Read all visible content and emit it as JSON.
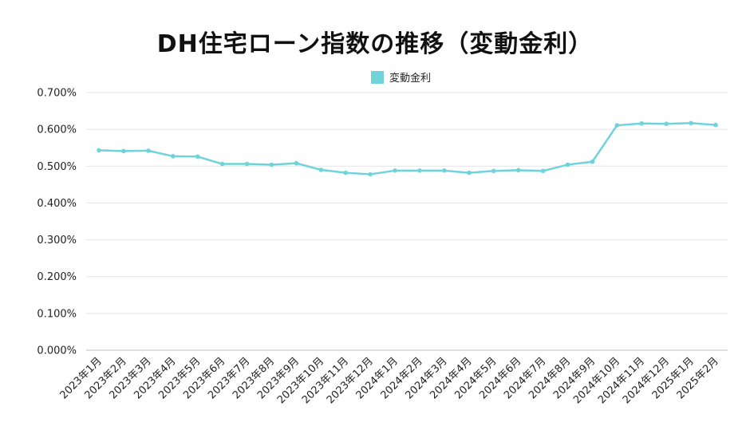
{
  "chart_data": {
    "type": "line",
    "title": "DH住宅ローン指数の推移（変動金利）",
    "xlabel": "",
    "ylabel": "",
    "categories": [
      "2023年1月",
      "2023年2月",
      "2023年3月",
      "2023年4月",
      "2023年5月",
      "2023年6月",
      "2023年7月",
      "2023年8月",
      "2023年9月",
      "2023年10月",
      "2023年11月",
      "2023年12月",
      "2024年1月",
      "2024年2月",
      "2024年3月",
      "2024年4月",
      "2024年5月",
      "2024年6月",
      "2024年7月",
      "2024年8月",
      "2024年9月",
      "2024年10月",
      "2024年11月",
      "2024年12月",
      "2025年1月",
      "2025年2月"
    ],
    "series": [
      {
        "name": "変動金利",
        "values": [
          0.543,
          0.541,
          0.542,
          0.527,
          0.526,
          0.506,
          0.506,
          0.504,
          0.508,
          0.49,
          0.482,
          0.478,
          0.488,
          0.488,
          0.488,
          0.482,
          0.487,
          0.489,
          0.487,
          0.504,
          0.512,
          0.611,
          0.616,
          0.615,
          0.617,
          0.612
        ],
        "color": "#6fd3dc"
      }
    ],
    "ylim": [
      0,
      0.7
    ],
    "yticks": [
      "0.000%",
      "0.100%",
      "0.200%",
      "0.300%",
      "0.400%",
      "0.500%",
      "0.600%",
      "0.700%"
    ],
    "ytick_values": [
      0,
      0.1,
      0.2,
      0.3,
      0.4,
      0.5,
      0.6,
      0.7
    ],
    "grid": true,
    "legend": "top"
  }
}
